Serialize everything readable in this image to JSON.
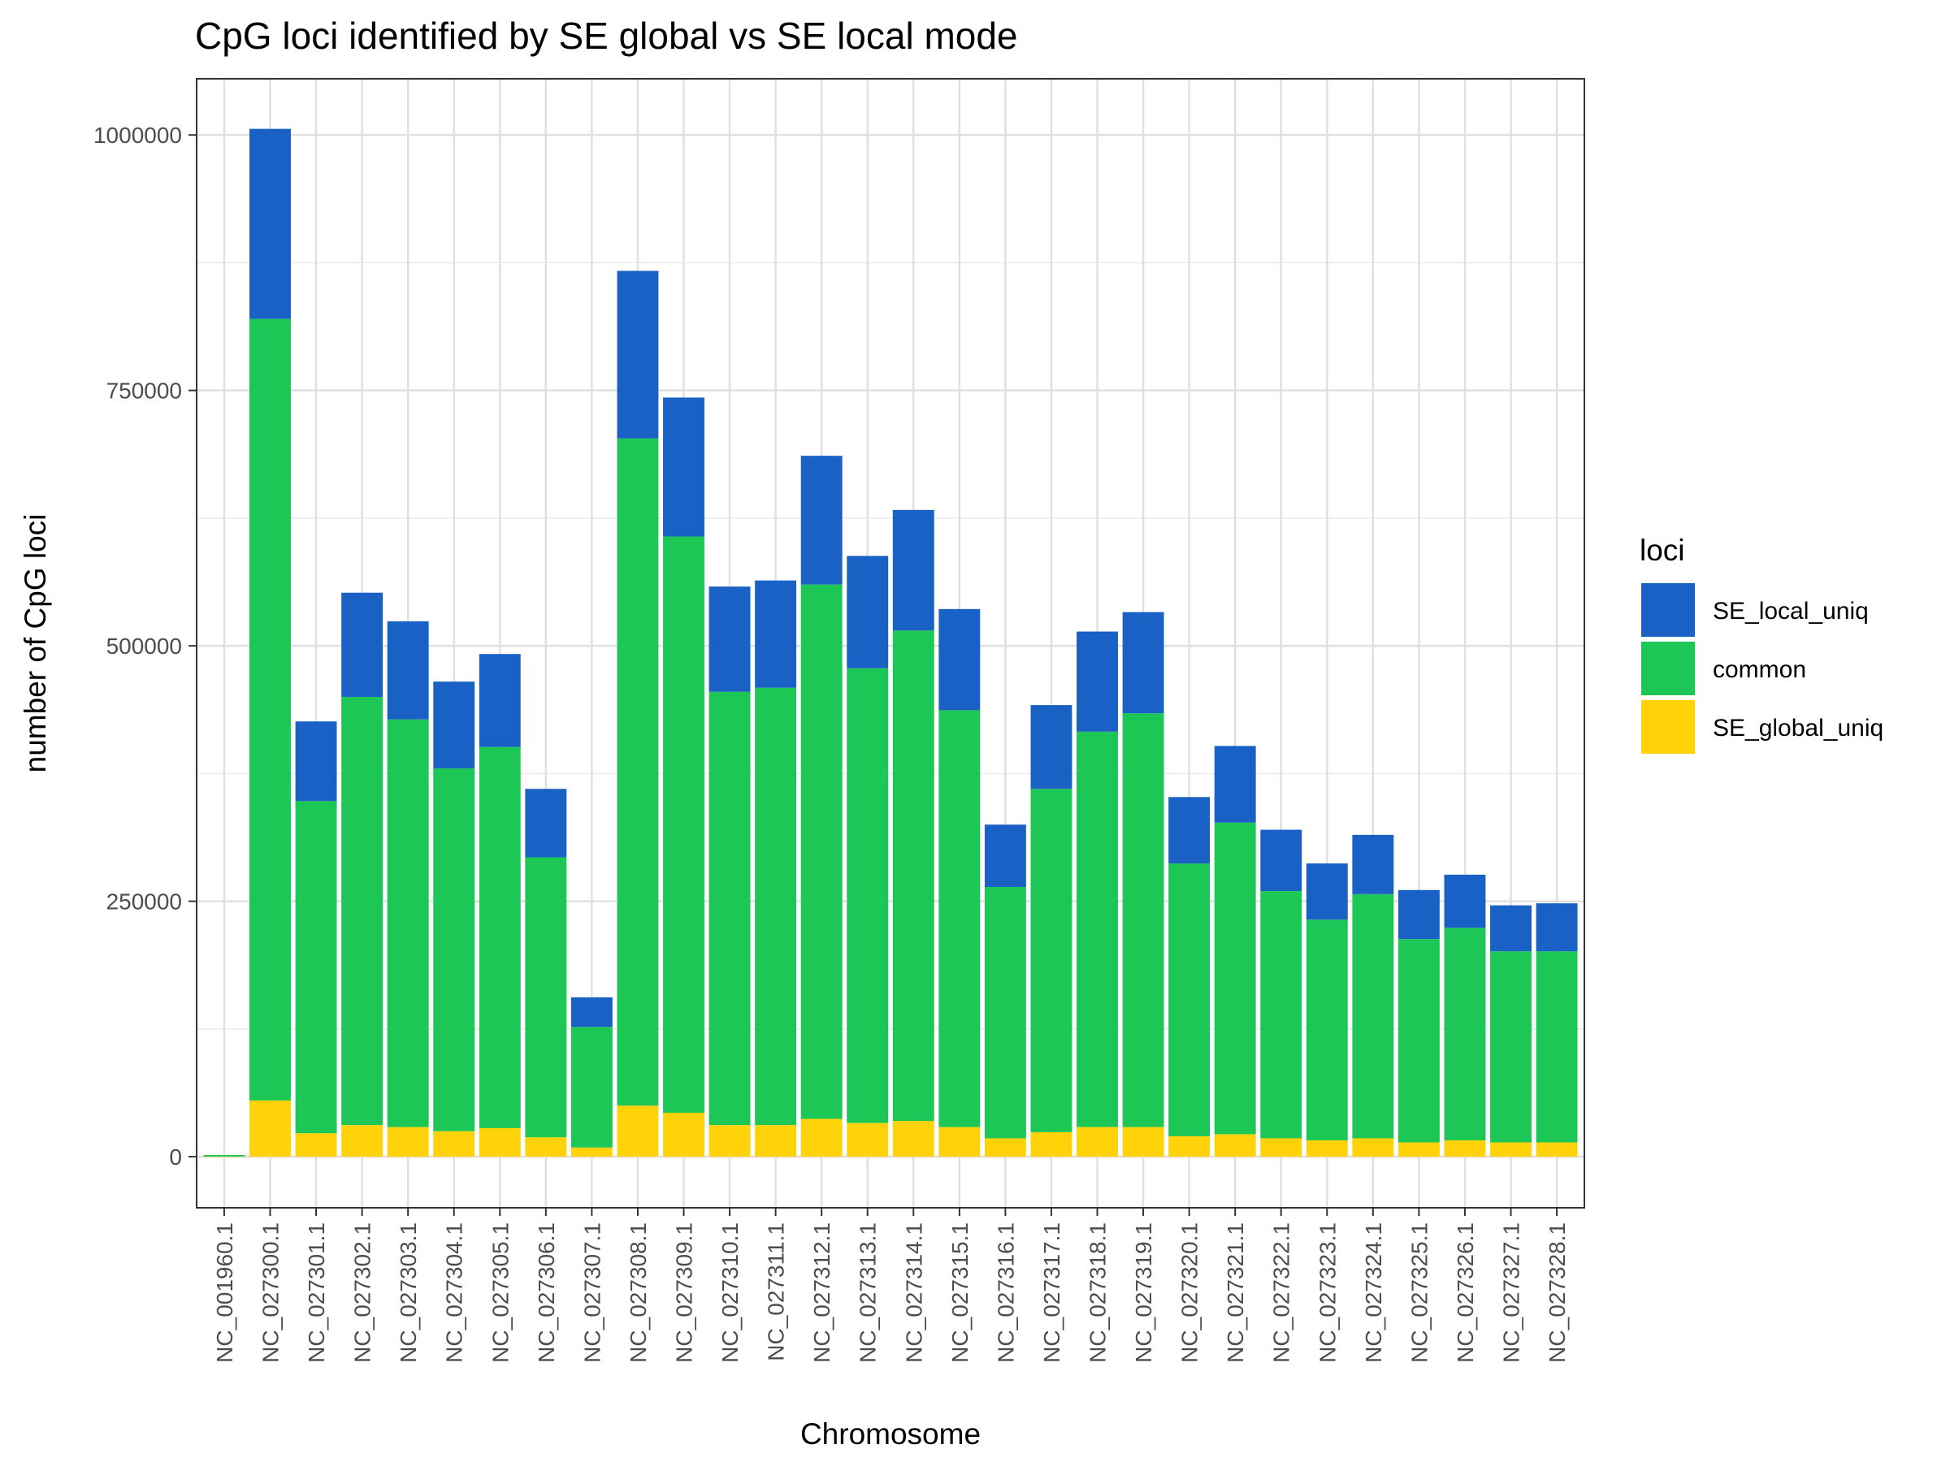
{
  "chart_data": {
    "type": "bar",
    "stacked": true,
    "title": "CpG loci identified by SE global vs SE local mode",
    "xlabel": "Chromosome",
    "ylabel": "number of CpG loci",
    "ylim": [
      -50000,
      1055000
    ],
    "yticks": [
      0,
      250000,
      500000,
      750000,
      1000000
    ],
    "grid": true,
    "legend": {
      "title": "loci",
      "position": "right"
    },
    "categories": [
      "NC_001960.1",
      "NC_027300.1",
      "NC_027301.1",
      "NC_027302.1",
      "NC_027303.1",
      "NC_027304.1",
      "NC_027305.1",
      "NC_027306.1",
      "NC_027307.1",
      "NC_027308.1",
      "NC_027309.1",
      "NC_027310.1",
      "NC_027311.1",
      "NC_027312.1",
      "NC_027313.1",
      "NC_027314.1",
      "NC_027315.1",
      "NC_027316.1",
      "NC_027317.1",
      "NC_027318.1",
      "NC_027319.1",
      "NC_027320.1",
      "NC_027321.1",
      "NC_027322.1",
      "NC_027323.1",
      "NC_027324.1",
      "NC_027325.1",
      "NC_027326.1",
      "NC_027327.1",
      "NC_027328.1"
    ],
    "series": [
      {
        "name": "SE_global_uniq",
        "color": "#FFD20A",
        "values": [
          200,
          55000,
          23000,
          31000,
          29000,
          25000,
          28000,
          19000,
          9000,
          50000,
          43000,
          31000,
          31000,
          37000,
          33000,
          35000,
          29000,
          18000,
          24000,
          29000,
          29000,
          20000,
          22000,
          18000,
          16000,
          18000,
          14000,
          16000,
          14000,
          14000
        ]
      },
      {
        "name": "common",
        "color": "#1DC756",
        "values": [
          1500,
          765000,
          325000,
          419000,
          399000,
          355000,
          373000,
          274000,
          118000,
          653000,
          564000,
          424000,
          428000,
          523000,
          445000,
          480000,
          408000,
          246000,
          336000,
          387000,
          405000,
          267000,
          305000,
          242000,
          216000,
          239000,
          199000,
          208000,
          187000,
          187000
        ]
      },
      {
        "name": "SE_local_uniq",
        "color": "#1961C4",
        "values": [
          0,
          186000,
          78000,
          102000,
          96000,
          85000,
          91000,
          67000,
          29000,
          164000,
          136000,
          103000,
          105000,
          126000,
          110000,
          118000,
          99000,
          61000,
          82000,
          98000,
          99000,
          65000,
          75000,
          60000,
          55000,
          58000,
          48000,
          52000,
          45000,
          47000
        ]
      }
    ],
    "legend_order": [
      "SE_local_uniq",
      "common",
      "SE_global_uniq"
    ]
  }
}
